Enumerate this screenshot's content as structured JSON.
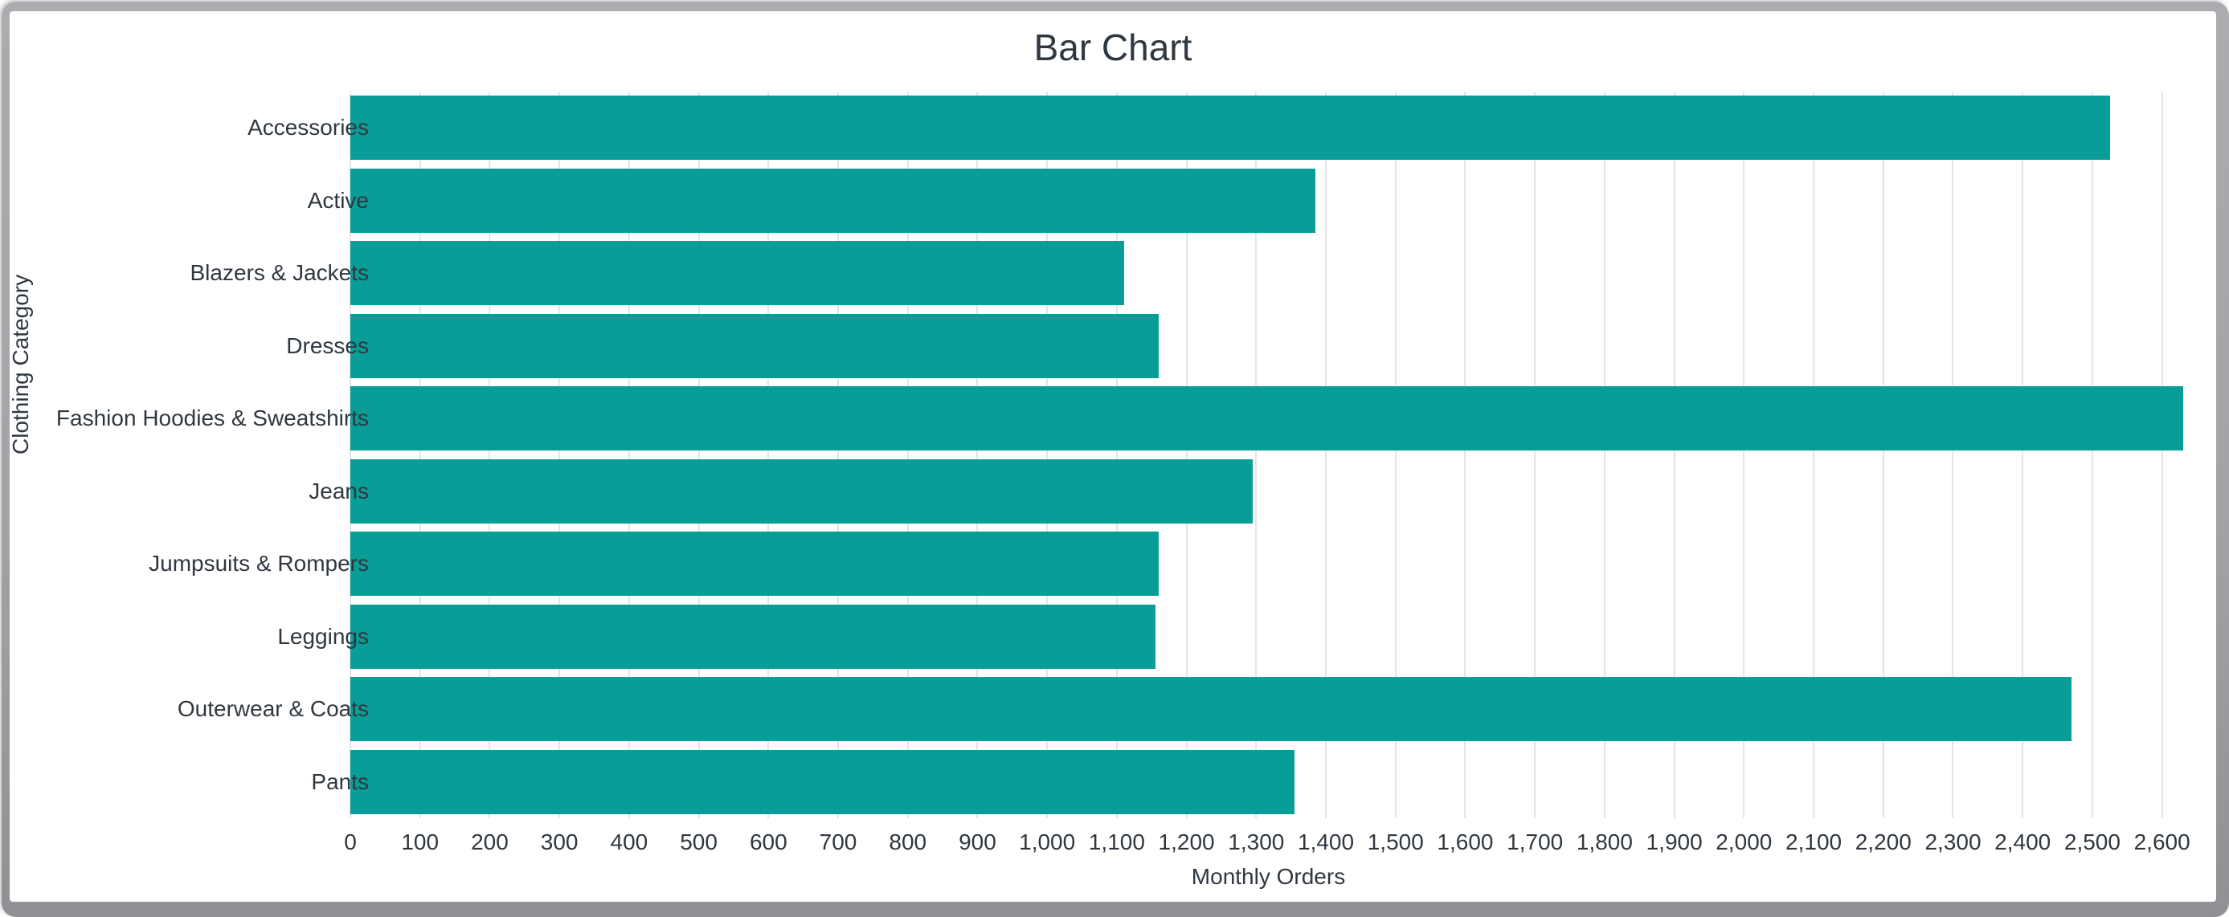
{
  "chart_data": {
    "type": "bar",
    "orientation": "horizontal",
    "title": "Bar Chart",
    "xlabel": "Monthly Orders",
    "ylabel": "Clothing Category",
    "categories": [
      "Accessories",
      "Active",
      "Blazers & Jackets",
      "Dresses",
      "Fashion Hoodies & Sweatshirts",
      "Jeans",
      "Jumpsuits & Rompers",
      "Leggings",
      "Outerwear & Coats",
      "Pants"
    ],
    "values": [
      2525,
      1385,
      1110,
      1160,
      2630,
      1295,
      1160,
      1155,
      2470,
      1355
    ],
    "xlim": [
      0,
      2635
    ],
    "xticks": [
      0,
      100,
      200,
      300,
      400,
      500,
      600,
      700,
      800,
      900,
      1000,
      1100,
      1200,
      1300,
      1400,
      1500,
      1600,
      1700,
      1800,
      1900,
      2000,
      2100,
      2200,
      2300,
      2400,
      2500,
      2600
    ],
    "xtick_labels": [
      "0",
      "100",
      "200",
      "300",
      "400",
      "500",
      "600",
      "700",
      "800",
      "900",
      "1,000",
      "1,100",
      "1,200",
      "1,300",
      "1,400",
      "1,500",
      "1,600",
      "1,700",
      "1,800",
      "1,900",
      "2,000",
      "2,100",
      "2,200",
      "2,300",
      "2,400",
      "2,500",
      "2,600"
    ],
    "grid": true,
    "legend": "none",
    "colors": {
      "bar": "#089d97",
      "grid": "#e5e5e7",
      "text": "#2f3740",
      "frame": "#a4a4a8",
      "background": "#ffffff"
    }
  }
}
